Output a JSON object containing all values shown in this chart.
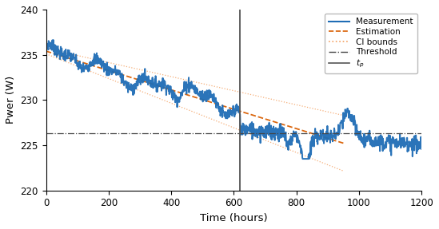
{
  "xlim": [
    0,
    1200
  ],
  "ylim": [
    220,
    240
  ],
  "yticks": [
    220,
    225,
    230,
    235,
    240
  ],
  "xticks": [
    0,
    200,
    400,
    600,
    800,
    1000,
    1200
  ],
  "xlabel": "Time (hours)",
  "ylabel": "Pwer (W)",
  "threshold": 226.3,
  "tp": 620,
  "est_start_val": 235.4,
  "est_slope": -0.0107,
  "ci_width_start": 0.3,
  "ci_width_end_tp": 1.2,
  "ci_width_end_full": 3.8,
  "measurement_color": "#1f6db5",
  "estimation_color": "#d95f02",
  "ci_color": "#f4a060",
  "threshold_color": "#444444",
  "tp_color": "#555555",
  "figsize": [
    5.49,
    2.87
  ],
  "dpi": 100,
  "seed": 7
}
